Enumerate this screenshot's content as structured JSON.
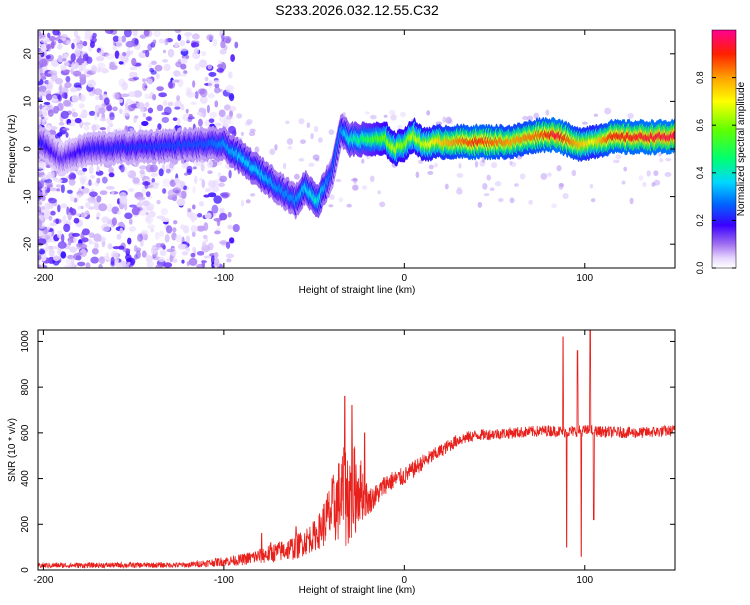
{
  "title": "S233.2026.032.12.55.C32",
  "chart_data": [
    {
      "type": "heatmap",
      "xlabel": "Height of straight line (km)",
      "ylabel": "Frequency (Hz)",
      "xlim": [
        -203,
        150
      ],
      "ylim": [
        -25,
        25
      ],
      "xticks": [
        -200,
        -100,
        0,
        100
      ],
      "yticks": [
        -20,
        -10,
        0,
        10,
        20
      ],
      "colorbar": {
        "label": "Normalized spectral amplitude",
        "range": [
          0,
          1
        ],
        "ticks": [
          0.0,
          0.2,
          0.4,
          0.6,
          0.8
        ],
        "tick_labels": [
          "0.0",
          "0.2",
          "0.4",
          "0.6",
          "0.8"
        ]
      },
      "ridge": [
        {
          "x": -200,
          "y": 1,
          "amp": 0.2
        },
        {
          "x": -190,
          "y": -2,
          "amp": 0.15
        },
        {
          "x": -175,
          "y": 0,
          "amp": 0.2
        },
        {
          "x": -110,
          "y": 1,
          "amp": 0.25
        },
        {
          "x": -100,
          "y": 1,
          "amp": 0.3
        },
        {
          "x": -90,
          "y": -2,
          "amp": 0.35
        },
        {
          "x": -80,
          "y": -5,
          "amp": 0.35
        },
        {
          "x": -70,
          "y": -8,
          "amp": 0.3
        },
        {
          "x": -60,
          "y": -11,
          "amp": 0.3
        },
        {
          "x": -55,
          "y": -8,
          "amp": 0.35
        },
        {
          "x": -48,
          "y": -11,
          "amp": 0.4
        },
        {
          "x": -40,
          "y": -5,
          "amp": 0.25
        },
        {
          "x": -35,
          "y": 4,
          "amp": 0.3
        },
        {
          "x": -30,
          "y": 2,
          "amp": 0.4
        },
        {
          "x": -20,
          "y": 2,
          "amp": 0.5
        },
        {
          "x": -10,
          "y": 2,
          "amp": 0.6
        },
        {
          "x": -5,
          "y": 0,
          "amp": 0.65
        },
        {
          "x": 0,
          "y": 1,
          "amp": 0.6
        },
        {
          "x": 5,
          "y": 3,
          "amp": 0.65
        },
        {
          "x": 10,
          "y": 1,
          "amp": 0.65
        },
        {
          "x": 20,
          "y": 1.5,
          "amp": 0.75
        },
        {
          "x": 40,
          "y": 1.5,
          "amp": 0.9
        },
        {
          "x": 60,
          "y": 1.5,
          "amp": 0.8
        },
        {
          "x": 75,
          "y": 3,
          "amp": 0.85
        },
        {
          "x": 85,
          "y": 3,
          "amp": 0.95
        },
        {
          "x": 95,
          "y": 1,
          "amp": 0.8
        },
        {
          "x": 105,
          "y": 1.5,
          "amp": 0.7
        },
        {
          "x": 115,
          "y": 2.5,
          "amp": 0.9
        },
        {
          "x": 150,
          "y": 2.5,
          "amp": 0.95
        }
      ]
    },
    {
      "type": "line",
      "xlabel": "Height of straight line (km)",
      "ylabel": "SNR (10 * v/v)",
      "xlim": [
        -203,
        150
      ],
      "ylim": [
        0,
        1050
      ],
      "xticks": [
        -200,
        -100,
        0,
        100
      ],
      "yticks": [
        0,
        200,
        400,
        600,
        800,
        1000
      ],
      "series": [
        {
          "name": "SNR",
          "color": "#e8201c",
          "envelope_x": [
            -203,
            -120,
            -90,
            -75,
            -60,
            -48,
            -40,
            -35,
            -30,
            -25,
            -20,
            -15,
            -10,
            0,
            10,
            20,
            30,
            40,
            50,
            60,
            80,
            90,
            100,
            110,
            130,
            150
          ],
          "envelope_y": [
            20,
            22,
            45,
            70,
            100,
            160,
            260,
            320,
            330,
            360,
            300,
            330,
            380,
            410,
            470,
            520,
            570,
            590,
            595,
            600,
            610,
            605,
            610,
            605,
            600,
            610
          ],
          "noise_amp": [
            12,
            12,
            25,
            40,
            55,
            70,
            150,
            200,
            250,
            160,
            60,
            50,
            45,
            40,
            35,
            30,
            28,
            25,
            25,
            25,
            25,
            25,
            25,
            25,
            25,
            25
          ],
          "spikes": [
            {
              "x": -79,
              "y": 160
            },
            {
              "x": -74,
              "y": 120
            },
            {
              "x": -60,
              "y": 190
            },
            {
              "x": -33,
              "y": 760
            },
            {
              "x": -29,
              "y": 720
            },
            {
              "x": -22,
              "y": 600
            },
            {
              "x": 88,
              "y": 1020
            },
            {
              "x": 90,
              "y": 100
            },
            {
              "x": 96,
              "y": 960
            },
            {
              "x": 98,
              "y": 60
            },
            {
              "x": 103,
              "y": 1050
            },
            {
              "x": 105,
              "y": 220
            }
          ]
        }
      ]
    }
  ]
}
